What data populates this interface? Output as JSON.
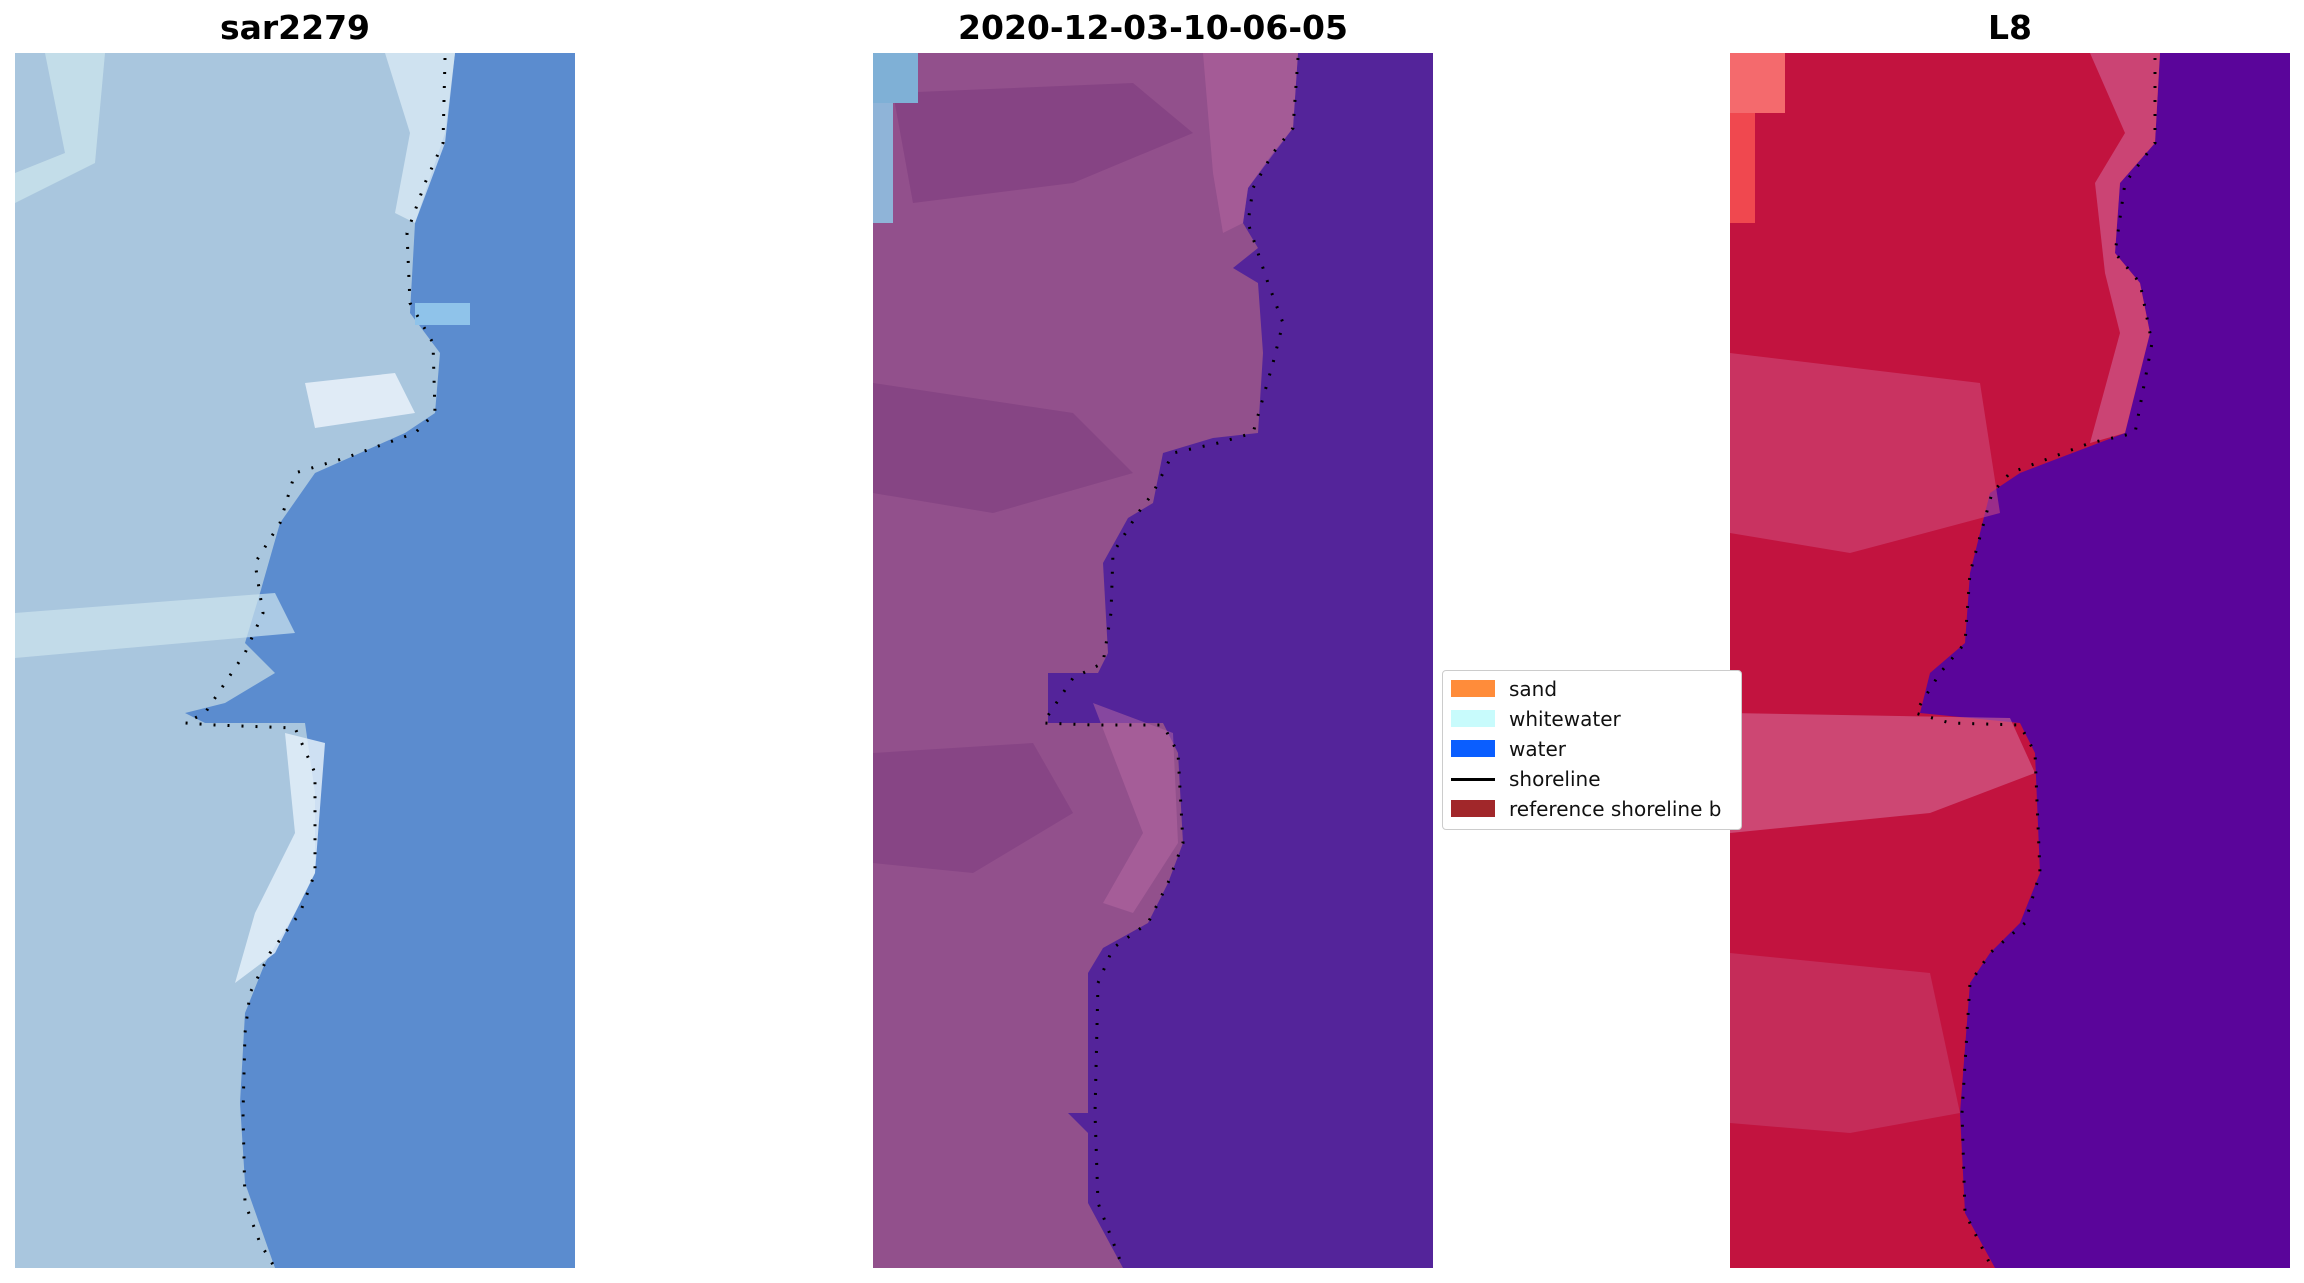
{
  "panels": [
    {
      "title": "sar2279"
    },
    {
      "title": "2020-12-03-10-06-05"
    },
    {
      "title": "L8"
    }
  ],
  "legend": {
    "items": [
      {
        "label": "sand",
        "color": "#ff8c3a",
        "kind": "patch"
      },
      {
        "label": "whitewater",
        "color": "#c8fbfc",
        "kind": "patch"
      },
      {
        "label": "water",
        "color": "#0a5eff",
        "kind": "patch"
      },
      {
        "label": "shoreline",
        "color": "#000000",
        "kind": "line"
      },
      {
        "label": "reference shoreline b",
        "color": "#a1272a",
        "kind": "patch"
      }
    ]
  },
  "colors": {
    "panel1_water": "#5b8ccf",
    "panel1_land": "#a9c6de",
    "panel2_water": "#54249a",
    "panel2_land": "#92508c",
    "panel3_water": "#5a059a",
    "panel3_land": "#c2133f",
    "shoreline_dots": "#000000"
  }
}
